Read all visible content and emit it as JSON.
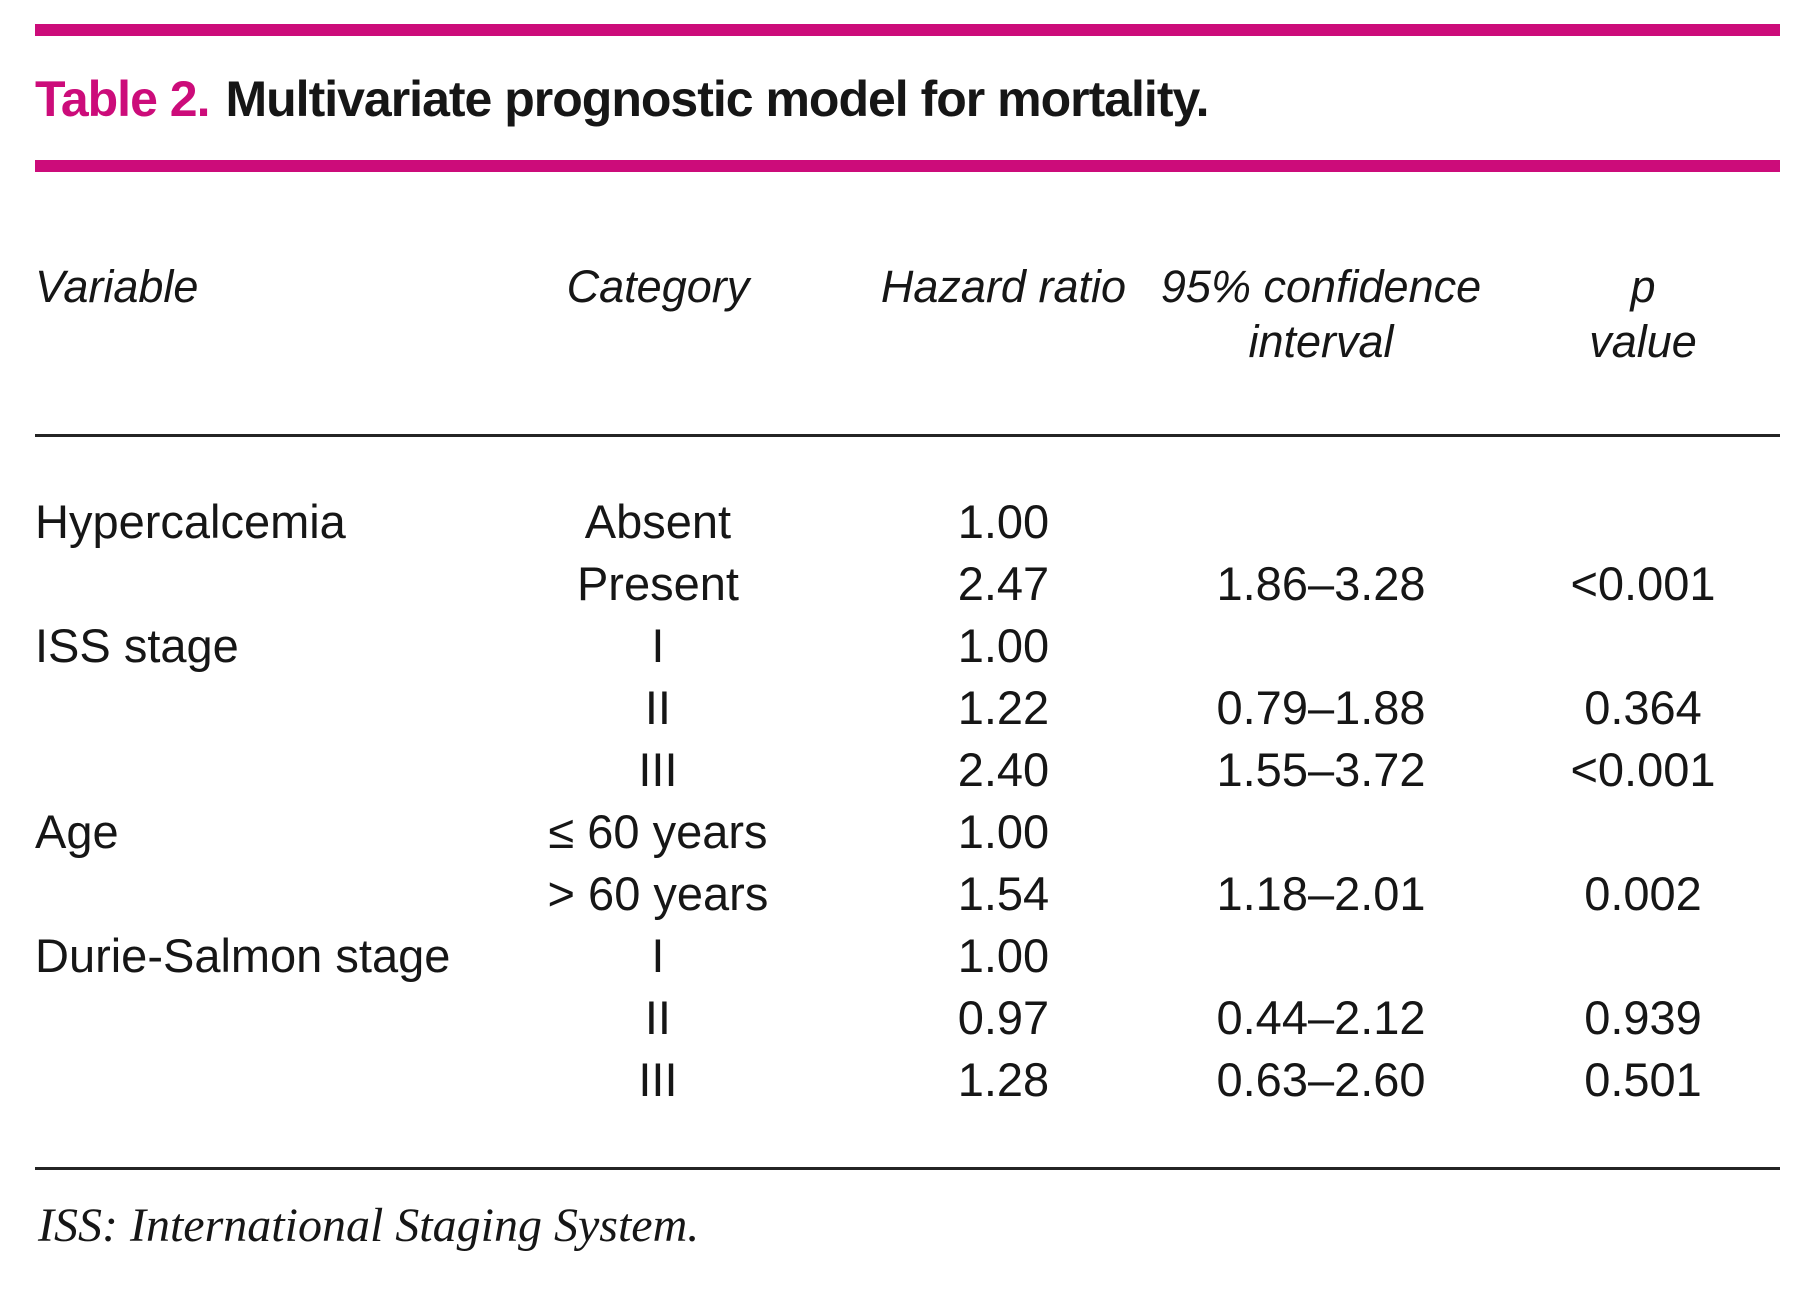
{
  "page": {
    "accent_color": "#cc0c7a",
    "title_label": "Table 2.",
    "title_text": "Multivariate prognostic model for mortality.",
    "footnote": "ISS: International Staging System."
  },
  "table": {
    "headers": {
      "variable": "Variable",
      "category": "Category",
      "hazard_ratio": "Hazard ratio",
      "confidence_interval": "95% confidence\ninterval",
      "p_value": "p\nvalue"
    },
    "rows": [
      [
        "Hypercalcemia",
        "Absent",
        "1.00",
        "",
        ""
      ],
      [
        "",
        "Present",
        "2.47",
        "1.86–3.28",
        "<0.001"
      ],
      [
        "ISS stage",
        "I",
        "1.00",
        "",
        ""
      ],
      [
        "",
        "II",
        "1.22",
        "0.79–1.88",
        "0.364"
      ],
      [
        "",
        "III",
        "2.40",
        "1.55–3.72",
        "<0.001"
      ],
      [
        "Age",
        "≤ 60 years",
        "1.00",
        "",
        ""
      ],
      [
        "",
        "> 60 years",
        "1.54",
        "1.18–2.01",
        "0.002"
      ],
      [
        "Durie-Salmon stage",
        "I",
        "1.00",
        "",
        ""
      ],
      [
        "",
        "II",
        "0.97",
        "0.44–2.12",
        "0.939"
      ],
      [
        "",
        "III",
        "1.28",
        "0.63–2.60",
        "0.501"
      ]
    ]
  }
}
